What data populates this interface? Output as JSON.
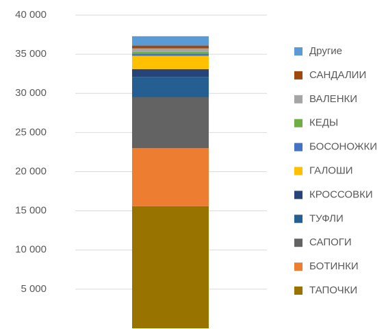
{
  "chart_data": {
    "type": "stacked_bar",
    "series": [
      {
        "name": "ТАПОЧКИ",
        "color": "#997300",
        "values": [
          15600
        ]
      },
      {
        "name": "БОТИНКИ",
        "color": "#ed7d31",
        "values": [
          7400
        ]
      },
      {
        "name": "САПОГИ",
        "color": "#636363",
        "values": [
          6500
        ]
      },
      {
        "name": "ТУФЛИ",
        "color": "#255e91",
        "values": [
          2600
        ]
      },
      {
        "name": "КРОССОВКИ",
        "color": "#264478",
        "values": [
          1000
        ]
      },
      {
        "name": "ГАЛОШИ",
        "color": "#ffc000",
        "values": [
          1700
        ]
      },
      {
        "name": "БОСОНОЖКИ",
        "color": "#4472c4",
        "values": [
          250
        ]
      },
      {
        "name": "КЕДЫ",
        "color": "#70ad47",
        "values": [
          250
        ]
      },
      {
        "name": "ВАЛЕНКИ",
        "color": "#a5a5a5",
        "values": [
          450
        ]
      },
      {
        "name": "САНДАЛИИ",
        "color": "#9e480e",
        "values": [
          350
        ]
      },
      {
        "name": "Другие",
        "color": "#5b9bd5",
        "values": [
          1200
        ]
      }
    ],
    "ylim": [
      0,
      40000
    ],
    "yticks": [
      {
        "value": 5000,
        "label": "5 000"
      },
      {
        "value": 10000,
        "label": "10 000"
      },
      {
        "value": 15000,
        "label": "15 000"
      },
      {
        "value": 20000,
        "label": "20 000"
      },
      {
        "value": 25000,
        "label": "25 000"
      },
      {
        "value": 30000,
        "label": "30 000"
      },
      {
        "value": 35000,
        "label": "35 000"
      },
      {
        "value": 40000,
        "label": "40 000"
      }
    ],
    "grid": true,
    "legend": "right"
  }
}
